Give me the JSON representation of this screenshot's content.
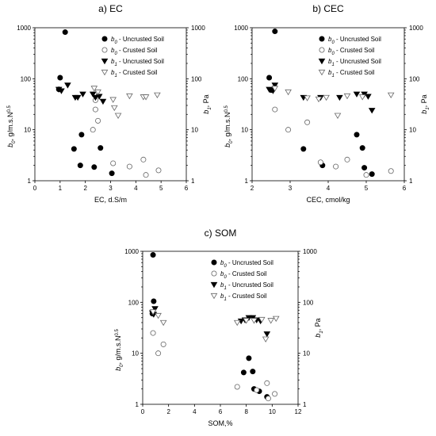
{
  "chart_data": [
    {
      "type": "scatter",
      "id": "ec",
      "title": "a) EC",
      "xlabel": "EC, d.S/m",
      "ylabel_left": "b0, g/m.s.N^0.5",
      "ylabel_right": "b1, Pa",
      "ylabel_left_parts": {
        "base": "b",
        "sub": "0",
        "rest": ", g/m.s.N",
        "sup": "0.5"
      },
      "ylabel_right_parts": {
        "base": "b",
        "sub": "1",
        "rest": ", Pa"
      },
      "xlim": [
        0,
        6
      ],
      "xticks": [
        0,
        1,
        2,
        3,
        4,
        5,
        6
      ],
      "ylim": [
        1,
        1000
      ],
      "yscale": "log",
      "yticks": [
        1,
        10,
        100,
        1000
      ],
      "legend_position": "top-right",
      "series": [
        {
          "name": "b0 - Uncrusted Soil",
          "legend_parts": {
            "base": "b",
            "sub": "0",
            "rest": " - Uncrusted Soil"
          },
          "marker": "circle-filled",
          "points": [
            [
              1.2,
              820
            ],
            [
              1.0,
              105
            ],
            [
              0.95,
              62
            ],
            [
              1.85,
              8
            ],
            [
              1.55,
              4.2
            ],
            [
              2.6,
              4.4
            ],
            [
              1.8,
              2.0
            ],
            [
              2.35,
              1.85
            ],
            [
              3.05,
              1.4
            ]
          ]
        },
        {
          "name": "b0 - Crusted Soil",
          "legend_parts": {
            "base": "b",
            "sub": "0",
            "rest": " - Crusted Soil"
          },
          "marker": "circle-open",
          "points": [
            [
              2.4,
              38
            ],
            [
              2.4,
              25
            ],
            [
              2.5,
              15
            ],
            [
              2.3,
              10
            ],
            [
              3.1,
              2.2
            ],
            [
              3.75,
              1.9
            ],
            [
              4.3,
              2.6
            ],
            [
              4.4,
              1.3
            ],
            [
              4.9,
              1.6
            ]
          ]
        },
        {
          "name": "b1 - Uncrusted Soil",
          "legend_parts": {
            "base": "b",
            "sub": "1",
            "rest": " - Uncrusted Soil"
          },
          "marker": "triangle-filled",
          "points": [
            [
              0.95,
              62
            ],
            [
              1.05,
              58
            ],
            [
              1.3,
              75
            ],
            [
              1.6,
              43
            ],
            [
              1.9,
              50
            ],
            [
              1.7,
              43
            ],
            [
              2.3,
              50
            ],
            [
              2.4,
              43
            ],
            [
              2.55,
              45
            ],
            [
              2.7,
              36
            ]
          ]
        },
        {
          "name": "b1 - Crusted Soil",
          "legend_parts": {
            "base": "b",
            "sub": "1",
            "rest": " - Crusted Soil"
          },
          "marker": "triangle-open",
          "points": [
            [
              2.35,
              65
            ],
            [
              2.5,
              55
            ],
            [
              3.1,
              39
            ],
            [
              3.15,
              27
            ],
            [
              3.3,
              19
            ],
            [
              3.75,
              46
            ],
            [
              4.3,
              44
            ],
            [
              4.4,
              44
            ],
            [
              4.85,
              48
            ]
          ]
        }
      ]
    },
    {
      "type": "scatter",
      "id": "cec",
      "title": "b) CEC",
      "xlabel": "CEC, cmol/kg",
      "ylabel_left": "b0, g/m.s.N^0.5",
      "ylabel_right": "b1, Pa",
      "ylabel_left_parts": {
        "base": "b",
        "sub": "0",
        "rest": ", g/m.s.N",
        "sup": "0.5"
      },
      "ylabel_right_parts": {
        "base": "b",
        "sub": "1",
        "rest": ", Pa"
      },
      "xlim": [
        2,
        6
      ],
      "xticks": [
        2,
        3,
        4,
        5,
        6
      ],
      "ylim": [
        1,
        1000
      ],
      "yscale": "log",
      "yticks": [
        1,
        10,
        100,
        1000
      ],
      "legend_position": "top-right",
      "series": [
        {
          "name": "b0 - Uncrusted Soil",
          "legend_parts": {
            "base": "b",
            "sub": "0",
            "rest": " - Uncrusted Soil"
          },
          "marker": "circle-filled",
          "points": [
            [
              2.6,
              850
            ],
            [
              2.45,
              105
            ],
            [
              2.5,
              60
            ],
            [
              3.35,
              4.2
            ],
            [
              3.85,
              2.0
            ],
            [
              4.75,
              8
            ],
            [
              4.9,
              4.4
            ],
            [
              4.95,
              1.8
            ],
            [
              5.15,
              1.35
            ]
          ]
        },
        {
          "name": "b0 - Crusted Soil",
          "legend_parts": {
            "base": "b",
            "sub": "0",
            "rest": " - Crusted Soil"
          },
          "marker": "circle-open",
          "points": [
            [
              2.6,
              25
            ],
            [
              2.95,
              10
            ],
            [
              3.45,
              14
            ],
            [
              3.8,
              2.3
            ],
            [
              4.2,
              1.9
            ],
            [
              4.5,
              2.6
            ],
            [
              5.0,
              1.3
            ],
            [
              5.65,
              1.55
            ]
          ]
        },
        {
          "name": "b1 - Uncrusted Soil",
          "legend_parts": {
            "base": "b",
            "sub": "1",
            "rest": " - Uncrusted Soil"
          },
          "marker": "triangle-filled",
          "points": [
            [
              2.45,
              62
            ],
            [
              2.55,
              58
            ],
            [
              2.6,
              75
            ],
            [
              3.35,
              43
            ],
            [
              3.8,
              43
            ],
            [
              4.3,
              43
            ],
            [
              4.75,
              50
            ],
            [
              4.95,
              50
            ],
            [
              5.05,
              45
            ],
            [
              5.15,
              24
            ]
          ]
        },
        {
          "name": "b1 - Crusted Soil",
          "legend_parts": {
            "base": "b",
            "sub": "1",
            "rest": " - Crusted Soil"
          },
          "marker": "triangle-open",
          "points": [
            [
              2.6,
              65
            ],
            [
              2.95,
              55
            ],
            [
              3.45,
              42
            ],
            [
              3.75,
              40
            ],
            [
              3.95,
              43
            ],
            [
              4.25,
              19
            ],
            [
              4.5,
              46
            ],
            [
              4.9,
              44
            ],
            [
              5.65,
              48
            ]
          ]
        }
      ]
    },
    {
      "type": "scatter",
      "id": "som",
      "title": "c) SOM",
      "xlabel": "SOM,%",
      "ylabel_left": "b0, g/m.s.N^0.5",
      "ylabel_right": "b1, Pa",
      "ylabel_left_parts": {
        "base": "b",
        "sub": "0",
        "rest": ", g/m.s.N",
        "sup": "0.5"
      },
      "ylabel_right_parts": {
        "base": "b",
        "sub": "1",
        "rest": ", Pa"
      },
      "xlim": [
        0,
        12
      ],
      "xticks": [
        0,
        2,
        4,
        6,
        8,
        10,
        12
      ],
      "ylim": [
        1,
        1000
      ],
      "yscale": "log",
      "yticks": [
        1,
        10,
        100,
        1000
      ],
      "legend_position": "top-right",
      "series": [
        {
          "name": "b0 - Uncrusted Soil",
          "legend_parts": {
            "base": "b",
            "sub": "0",
            "rest": " - Uncrusted Soil"
          },
          "marker": "circle-filled",
          "points": [
            [
              0.8,
              850
            ],
            [
              0.85,
              105
            ],
            [
              0.75,
              60
            ],
            [
              7.8,
              4.2
            ],
            [
              8.2,
              8
            ],
            [
              8.5,
              4.4
            ],
            [
              8.6,
              2.0
            ],
            [
              9.0,
              1.8
            ],
            [
              9.6,
              1.4
            ]
          ]
        },
        {
          "name": "b0 - Crusted Soil",
          "legend_parts": {
            "base": "b",
            "sub": "0",
            "rest": " - Crusted Soil"
          },
          "marker": "circle-open",
          "points": [
            [
              0.8,
              25
            ],
            [
              1.2,
              10
            ],
            [
              1.6,
              15
            ],
            [
              7.3,
              2.2
            ],
            [
              8.8,
              1.9
            ],
            [
              9.6,
              2.6
            ],
            [
              9.7,
              1.3
            ],
            [
              10.2,
              1.6
            ]
          ]
        },
        {
          "name": "b1 - Uncrusted Soil",
          "legend_parts": {
            "base": "b",
            "sub": "1",
            "rest": " - Uncrusted Soil"
          },
          "marker": "triangle-filled",
          "points": [
            [
              0.75,
              62
            ],
            [
              0.85,
              58
            ],
            [
              0.95,
              75
            ],
            [
              7.6,
              43
            ],
            [
              7.9,
              45
            ],
            [
              8.2,
              50
            ],
            [
              8.5,
              50
            ],
            [
              8.8,
              45
            ],
            [
              9.1,
              43
            ],
            [
              9.6,
              24
            ]
          ]
        },
        {
          "name": "b1 - Crusted Soil",
          "legend_parts": {
            "base": "b",
            "sub": "1",
            "rest": " - Crusted Soil"
          },
          "marker": "triangle-open",
          "points": [
            [
              0.8,
              65
            ],
            [
              1.2,
              55
            ],
            [
              1.6,
              40
            ],
            [
              7.3,
              40
            ],
            [
              8.0,
              44
            ],
            [
              8.6,
              44
            ],
            [
              9.2,
              46
            ],
            [
              9.5,
              19
            ],
            [
              9.9,
              44
            ],
            [
              10.3,
              48
            ]
          ]
        }
      ]
    }
  ]
}
